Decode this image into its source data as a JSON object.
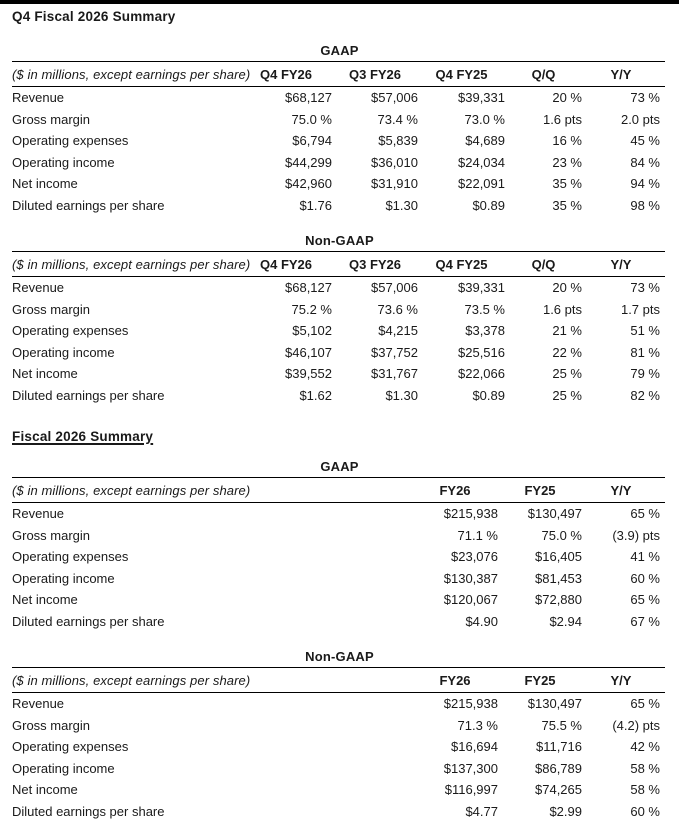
{
  "document": {
    "q4_section_title": "Q4 Fiscal 2026 Summary",
    "fiscal_section_title": "Fiscal 2026 Summary"
  },
  "colors": {
    "background": "#ffffff",
    "text": "#1a1a1a",
    "rule": "#000000",
    "top_bar": "#000000"
  },
  "tables": [
    {
      "heading": "GAAP",
      "caption": "($ in millions, except earnings per share)",
      "columns": [
        "Q4 FY26",
        "Q3 FY26",
        "Q4 FY25",
        "Q/Q",
        "Y/Y"
      ],
      "rows": [
        {
          "label": "Revenue",
          "values": [
            "$68,127",
            "$57,006",
            "$39,331",
            "20 %",
            "73 %"
          ]
        },
        {
          "label": "Gross margin",
          "values": [
            "75.0 %",
            "73.4 %",
            "73.0 %",
            "1.6 pts",
            "2.0 pts"
          ]
        },
        {
          "label": "Operating expenses",
          "values": [
            "$6,794",
            "$5,839",
            "$4,689",
            "16 %",
            "45 %"
          ]
        },
        {
          "label": "Operating income",
          "values": [
            "$44,299",
            "$36,010",
            "$24,034",
            "23 %",
            "84 %"
          ]
        },
        {
          "label": "Net income",
          "values": [
            "$42,960",
            "$31,910",
            "$22,091",
            "35 %",
            "94 %"
          ]
        },
        {
          "label": "Diluted earnings per share",
          "values": [
            "$1.76",
            "$1.30",
            "$0.89",
            "35 %",
            "98 %"
          ]
        }
      ]
    },
    {
      "heading": "Non-GAAP",
      "caption": "($ in millions, except earnings per share)",
      "columns": [
        "Q4 FY26",
        "Q3 FY26",
        "Q4 FY25",
        "Q/Q",
        "Y/Y"
      ],
      "rows": [
        {
          "label": "Revenue",
          "values": [
            "$68,127",
            "$57,006",
            "$39,331",
            "20 %",
            "73 %"
          ]
        },
        {
          "label": "Gross margin",
          "values": [
            "75.2 %",
            "73.6 %",
            "73.5 %",
            "1.6 pts",
            "1.7 pts"
          ]
        },
        {
          "label": "Operating expenses",
          "values": [
            "$5,102",
            "$4,215",
            "$3,378",
            "21 %",
            "51 %"
          ]
        },
        {
          "label": "Operating income",
          "values": [
            "$46,107",
            "$37,752",
            "$25,516",
            "22 %",
            "81 %"
          ]
        },
        {
          "label": "Net income",
          "values": [
            "$39,552",
            "$31,767",
            "$22,066",
            "25 %",
            "79 %"
          ]
        },
        {
          "label": "Diluted earnings per share",
          "values": [
            "$1.62",
            "$1.30",
            "$0.89",
            "25 %",
            "82 %"
          ]
        }
      ]
    },
    {
      "heading": "GAAP",
      "caption": "($ in millions, except earnings per share)",
      "columns": [
        "FY26",
        "FY25",
        "Y/Y"
      ],
      "rows": [
        {
          "label": "Revenue",
          "values": [
            "$215,938",
            "$130,497",
            "65 %"
          ]
        },
        {
          "label": "Gross margin",
          "values": [
            "71.1 %",
            "75.0 %",
            "(3.9) pts"
          ]
        },
        {
          "label": "Operating expenses",
          "values": [
            "$23,076",
            "$16,405",
            "41 %"
          ]
        },
        {
          "label": "Operating income",
          "values": [
            "$130,387",
            "$81,453",
            "60 %"
          ]
        },
        {
          "label": "Net income",
          "values": [
            "$120,067",
            "$72,880",
            "65 %"
          ]
        },
        {
          "label": "Diluted earnings per share",
          "values": [
            "$4.90",
            "$2.94",
            "67 %"
          ]
        }
      ]
    },
    {
      "heading": "Non-GAAP",
      "caption": "($ in millions, except earnings per share)",
      "columns": [
        "FY26",
        "FY25",
        "Y/Y"
      ],
      "rows": [
        {
          "label": "Revenue",
          "values": [
            "$215,938",
            "$130,497",
            "65 %"
          ]
        },
        {
          "label": "Gross margin",
          "values": [
            "71.3 %",
            "75.5 %",
            "(4.2) pts"
          ]
        },
        {
          "label": "Operating expenses",
          "values": [
            "$16,694",
            "$11,716",
            "42 %"
          ]
        },
        {
          "label": "Operating income",
          "values": [
            "$137,300",
            "$86,789",
            "58 %"
          ]
        },
        {
          "label": "Net income",
          "values": [
            "$116,997",
            "$74,265",
            "58 %"
          ]
        },
        {
          "label": "Diluted earnings per share",
          "values": [
            "$4.77",
            "$2.99",
            "60 %"
          ]
        }
      ]
    }
  ]
}
